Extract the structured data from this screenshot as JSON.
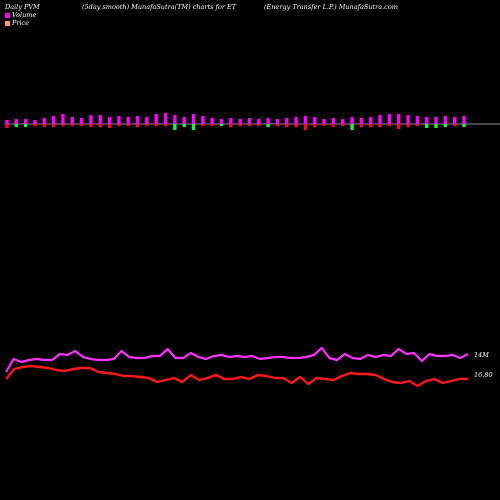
{
  "header": {
    "left": "Daily PVM",
    "middle": "(5day smooth) MunafaSutra(TM) charts for ET",
    "right": "(Energy Transfer L.P.) MunafaSutra.com"
  },
  "legend": [
    {
      "label": "Volume",
      "color": "#ff00ff"
    },
    {
      "label": "Price",
      "color": "#ffa07a"
    }
  ],
  "chart_data": {
    "type": "bar+line",
    "bars": {
      "colors": {
        "up": "#ff00ff",
        "down": "#ff0033",
        "green": "#22ee44"
      },
      "values": [
        {
          "up": 4,
          "down": -4,
          "c": "up"
        },
        {
          "up": 5,
          "down": -3,
          "c": "green"
        },
        {
          "up": 5,
          "down": -3,
          "c": "green"
        },
        {
          "up": 4,
          "down": -2,
          "c": "up"
        },
        {
          "up": 6,
          "down": -3,
          "c": "up"
        },
        {
          "up": 8,
          "down": -3,
          "c": "up"
        },
        {
          "up": 10,
          "down": -2,
          "c": "up"
        },
        {
          "up": 7,
          "down": -2,
          "c": "up"
        },
        {
          "up": 6,
          "down": -2,
          "c": "up"
        },
        {
          "up": 9,
          "down": -3,
          "c": "up"
        },
        {
          "up": 9,
          "down": -3,
          "c": "up"
        },
        {
          "up": 7,
          "down": -4,
          "c": "up"
        },
        {
          "up": 8,
          "down": -2,
          "c": "up"
        },
        {
          "up": 7,
          "down": -2,
          "c": "up"
        },
        {
          "up": 8,
          "down": -3,
          "c": "up"
        },
        {
          "up": 7,
          "down": -2,
          "c": "up"
        },
        {
          "up": 10,
          "down": -2,
          "c": "up"
        },
        {
          "up": 11,
          "down": -2,
          "c": "up"
        },
        {
          "up": 9,
          "down": -6,
          "c": "green"
        },
        {
          "up": 7,
          "down": -3,
          "c": "green"
        },
        {
          "up": 10,
          "down": -6,
          "c": "green"
        },
        {
          "up": 8,
          "down": -2,
          "c": "up"
        },
        {
          "up": 6,
          "down": -2,
          "c": "up"
        },
        {
          "up": 5,
          "down": -2,
          "c": "green"
        },
        {
          "up": 6,
          "down": -3,
          "c": "up"
        },
        {
          "up": 5,
          "down": -2,
          "c": "up"
        },
        {
          "up": 6,
          "down": -2,
          "c": "up"
        },
        {
          "up": 5,
          "down": -2,
          "c": "up"
        },
        {
          "up": 6,
          "down": -3,
          "c": "green"
        },
        {
          "up": 5,
          "down": -2,
          "c": "up"
        },
        {
          "up": 6,
          "down": -3,
          "c": "up"
        },
        {
          "up": 7,
          "down": -3,
          "c": "up"
        },
        {
          "up": 8,
          "down": -6,
          "c": "up"
        },
        {
          "up": 7,
          "down": -3,
          "c": "up"
        },
        {
          "up": 5,
          "down": -2,
          "c": "up"
        },
        {
          "up": 6,
          "down": -3,
          "c": "up"
        },
        {
          "up": 5,
          "down": -2,
          "c": "up"
        },
        {
          "up": 7,
          "down": -6,
          "c": "green"
        },
        {
          "up": 6,
          "down": -3,
          "c": "up"
        },
        {
          "up": 7,
          "down": -3,
          "c": "up"
        },
        {
          "up": 9,
          "down": -3,
          "c": "up"
        },
        {
          "up": 10,
          "down": -2,
          "c": "up"
        },
        {
          "up": 10,
          "down": -5,
          "c": "up"
        },
        {
          "up": 9,
          "down": -3,
          "c": "up"
        },
        {
          "up": 8,
          "down": -2,
          "c": "up"
        },
        {
          "up": 7,
          "down": -4,
          "c": "green"
        },
        {
          "up": 7,
          "down": -4,
          "c": "green"
        },
        {
          "up": 8,
          "down": -3,
          "c": "green"
        },
        {
          "up": 7,
          "down": -2,
          "c": "up"
        },
        {
          "up": 8,
          "down": -3,
          "c": "green"
        }
      ]
    },
    "volume_line": {
      "color": "#ff33ff",
      "end_label": "14M",
      "values": [
        4,
        17,
        14,
        16,
        17,
        16,
        16,
        22,
        21,
        25,
        19,
        17,
        16,
        16,
        17,
        25,
        19,
        18,
        18,
        20,
        20,
        27,
        18,
        18,
        23,
        19,
        17,
        20,
        21,
        19,
        20,
        19,
        20,
        17,
        18,
        19,
        19,
        18,
        18,
        19,
        21,
        28,
        18,
        16,
        22,
        18,
        17,
        21,
        19,
        21,
        20,
        27,
        22,
        23,
        15,
        22,
        20,
        20,
        21,
        18,
        22
      ]
    },
    "price_line": {
      "color": "#ff1a1a",
      "end_label": "16.80",
      "values": [
        5,
        15,
        17,
        18,
        17,
        16,
        14,
        13,
        15,
        16,
        16,
        12,
        11,
        10,
        8,
        8,
        7,
        6,
        2,
        4,
        6,
        2,
        9,
        4,
        6,
        9,
        5,
        5,
        7,
        5,
        9,
        8,
        6,
        6,
        1,
        7,
        0,
        6,
        5,
        4,
        8,
        11,
        10,
        10,
        9,
        5,
        2,
        1,
        3,
        -2,
        3,
        5,
        1,
        3,
        5,
        5
      ]
    }
  }
}
